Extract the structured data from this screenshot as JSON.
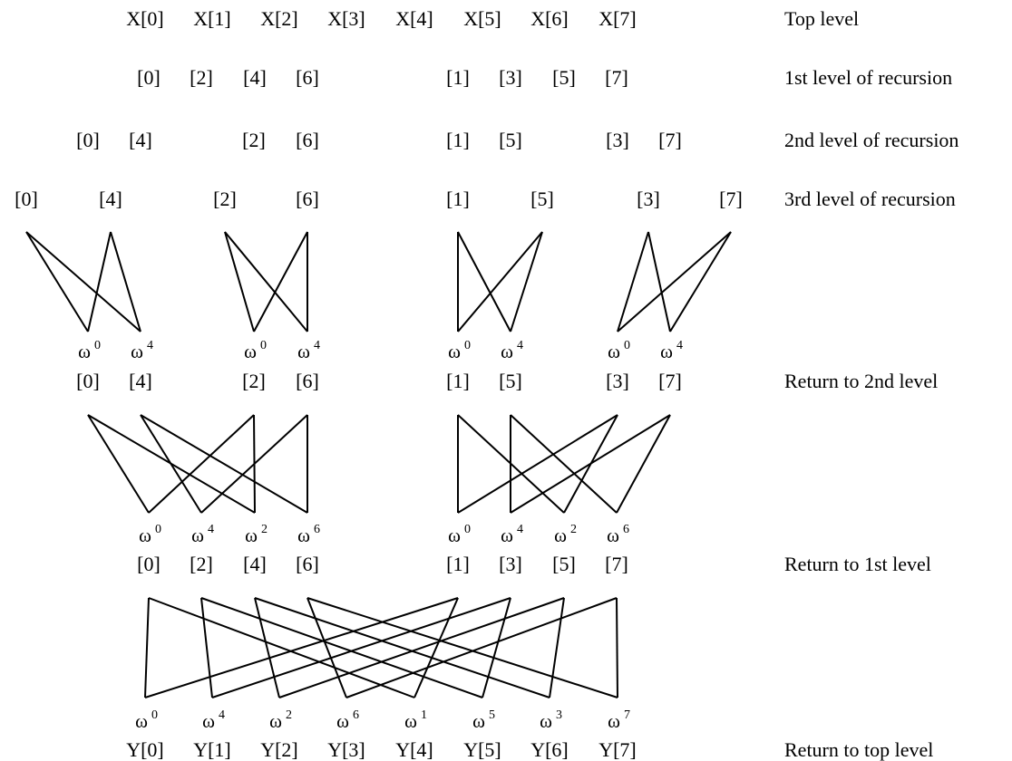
{
  "rows": [
    {
      "id": "top",
      "level_label": "Top level",
      "items": [
        "X[0]",
        "X[1]",
        "X[2]",
        "X[3]",
        "X[4]",
        "X[5]",
        "X[6]",
        "X[7]"
      ]
    },
    {
      "id": "l1",
      "level_label": "1st level of recursion",
      "items": [
        "[0]",
        "[2]",
        "[4]",
        "[6]",
        "[1]",
        "[3]",
        "[5]",
        "[7]"
      ]
    },
    {
      "id": "l2",
      "level_label": "2nd level of recursion",
      "items": [
        "[0]",
        "[4]",
        "[2]",
        "[6]",
        "[1]",
        "[5]",
        "[3]",
        "[7]"
      ]
    },
    {
      "id": "l3",
      "level_label": "3rd level of recursion",
      "items": [
        "[0]",
        "[4]",
        "[2]",
        "[6]",
        "[1]",
        "[5]",
        "[3]",
        "[7]"
      ]
    },
    {
      "id": "r2",
      "level_label": "Return to 2nd level",
      "items": [
        "[0]",
        "[4]",
        "[2]",
        "[6]",
        "[1]",
        "[5]",
        "[3]",
        "[7]"
      ]
    },
    {
      "id": "r1",
      "level_label": "Return to 1st level",
      "items": [
        "[0]",
        "[2]",
        "[4]",
        "[6]",
        "[1]",
        "[3]",
        "[5]",
        "[7]"
      ]
    },
    {
      "id": "rt",
      "level_label": "Return to top level",
      "items": [
        "Y[0]",
        "Y[1]",
        "Y[2]",
        "Y[3]",
        "Y[4]",
        "Y[5]",
        "Y[6]",
        "Y[7]"
      ]
    }
  ],
  "twiddles": [
    {
      "id": "w3",
      "base": "ω",
      "exponents": [
        "0",
        "4",
        "0",
        "4",
        "0",
        "4",
        "0",
        "4"
      ]
    },
    {
      "id": "w2",
      "base": "ω",
      "exponents": [
        "0",
        "4",
        "2",
        "6",
        "0",
        "4",
        "2",
        "6"
      ]
    },
    {
      "id": "w1",
      "base": "ω",
      "exponents": [
        "0",
        "4",
        "2",
        "6",
        "1",
        "5",
        "3",
        "7"
      ]
    }
  ]
}
